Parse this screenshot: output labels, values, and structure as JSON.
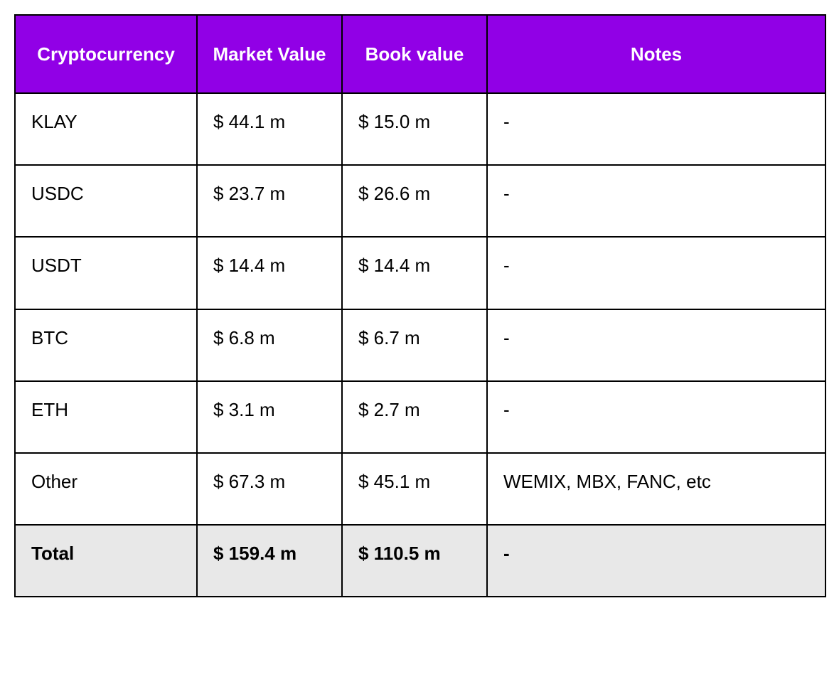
{
  "table": {
    "type": "table",
    "header_bg": "#9100e6",
    "header_fg": "#ffffff",
    "body_bg": "#ffffff",
    "total_bg": "#e8e8e8",
    "border_color": "#000000",
    "header_fontsize": 26,
    "cell_fontsize": 26,
    "columns": [
      {
        "label": "Cryptocurrency",
        "width_pct": 22.5
      },
      {
        "label": "Market Value",
        "width_pct": 17.9
      },
      {
        "label": "Book value",
        "width_pct": 17.9
      },
      {
        "label": "Notes",
        "width_pct": 41.7
      }
    ],
    "rows": [
      {
        "cryptocurrency": "KLAY",
        "market_value": "$ 44.1 m",
        "book_value": "$ 15.0 m",
        "notes": "-"
      },
      {
        "cryptocurrency": "USDC",
        "market_value": "$ 23.7 m",
        "book_value": "$ 26.6 m",
        "notes": "-"
      },
      {
        "cryptocurrency": "USDT",
        "market_value": "$ 14.4 m",
        "book_value": "$ 14.4 m",
        "notes": "-"
      },
      {
        "cryptocurrency": "BTC",
        "market_value": "$ 6.8 m",
        "book_value": "$ 6.7 m",
        "notes": "-"
      },
      {
        "cryptocurrency": "ETH",
        "market_value": "$ 3.1 m",
        "book_value": "$ 2.7 m",
        "notes": "-"
      },
      {
        "cryptocurrency": "Other",
        "market_value": "$ 67.3 m",
        "book_value": "$ 45.1 m",
        "notes": "WEMIX, MBX, FANC, etc"
      }
    ],
    "total": {
      "cryptocurrency": "Total",
      "market_value": "$ 159.4 m",
      "book_value": "$ 110.5 m",
      "notes": "-"
    }
  }
}
